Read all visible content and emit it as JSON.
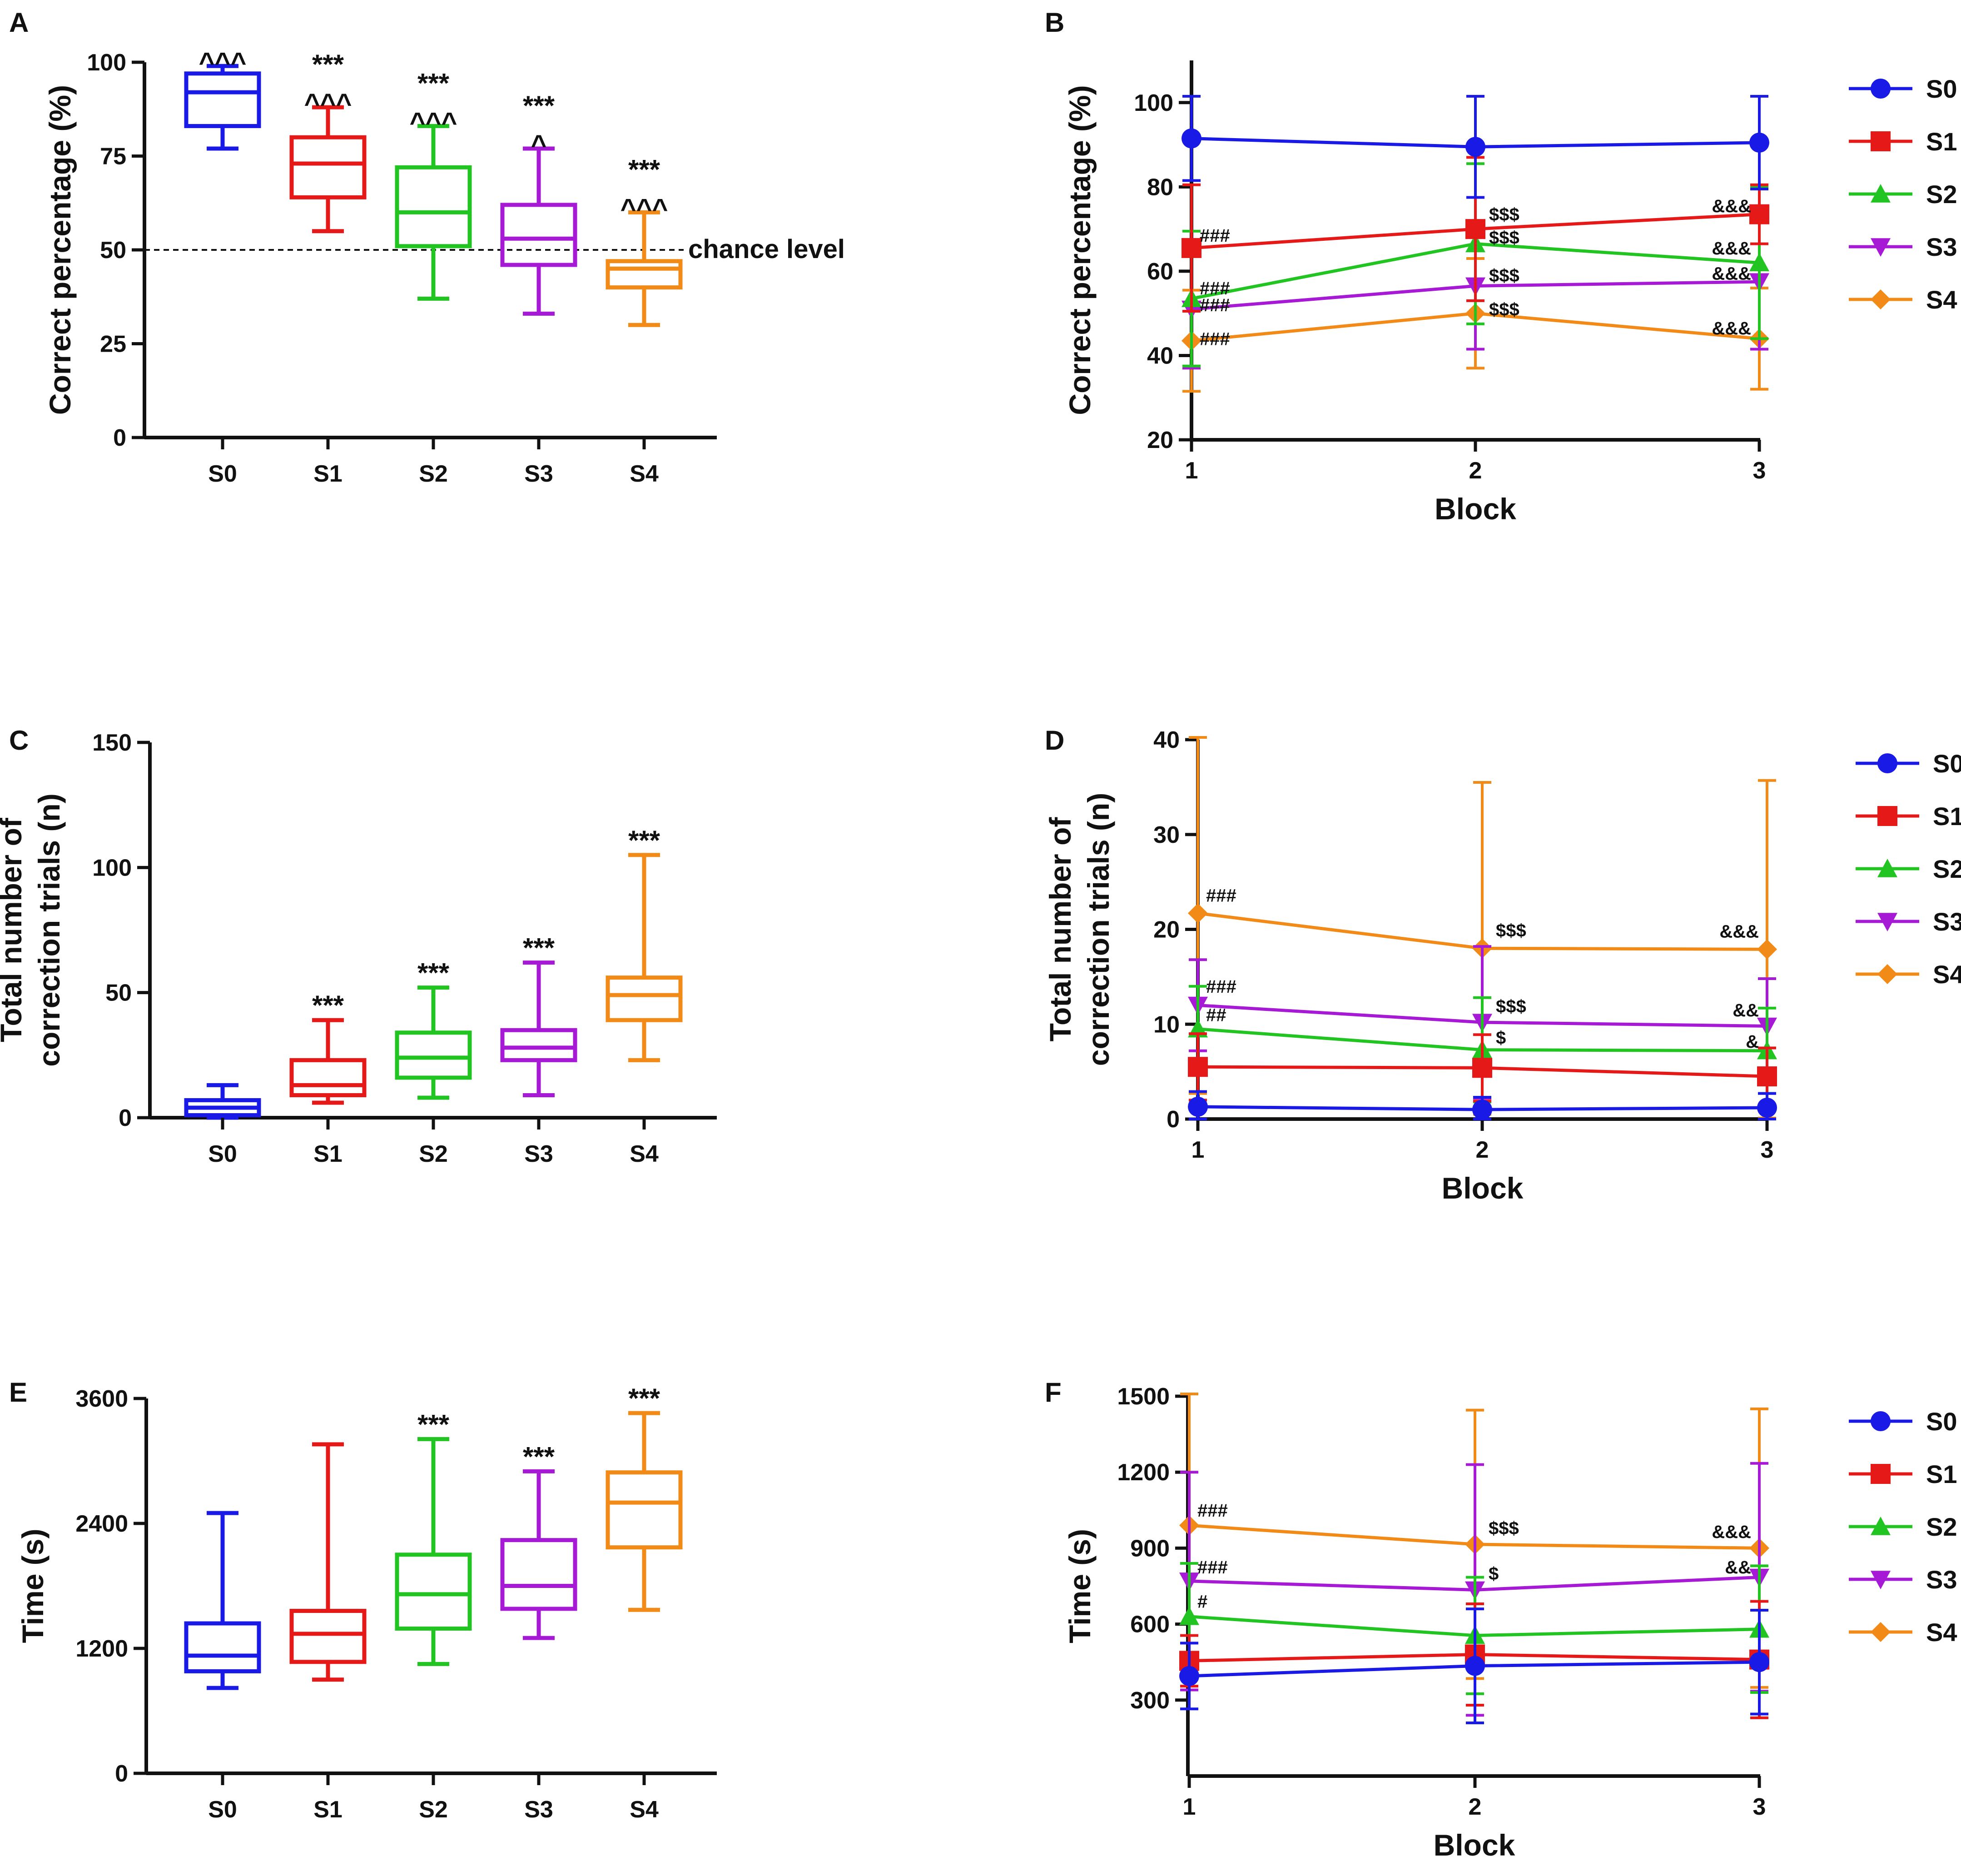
{
  "colors": {
    "S0": "#1a1ae6",
    "S1": "#e61919",
    "S2": "#22c422",
    "S3": "#a61ad6",
    "S4": "#f28a18"
  },
  "chart_data": [
    {
      "panel": "A",
      "type": "box",
      "title": "",
      "xlabel": "",
      "ylabel": "Correct percentage (%)",
      "ylim": [
        0,
        100
      ],
      "yticks": [
        "0",
        "25",
        "50",
        "75",
        "100"
      ],
      "reference_line": {
        "y": 50,
        "label": "chance level"
      },
      "categories": [
        "S0",
        "S1",
        "S2",
        "S3",
        "S4"
      ],
      "boxes": [
        {
          "min": 77,
          "q1": 83,
          "median": 92,
          "q3": 97,
          "max": 99,
          "sig": [
            "^^^"
          ]
        },
        {
          "min": 55,
          "q1": 64,
          "median": 73,
          "q3": 80,
          "max": 88,
          "sig": [
            "***",
            "^^^"
          ]
        },
        {
          "min": 37,
          "q1": 51,
          "median": 60,
          "q3": 72,
          "max": 83,
          "sig": [
            "***",
            "^^^"
          ]
        },
        {
          "min": 33,
          "q1": 46,
          "median": 53,
          "q3": 62,
          "max": 77,
          "sig": [
            "***",
            "^"
          ]
        },
        {
          "min": 30,
          "q1": 40,
          "median": 45,
          "q3": 47,
          "max": 60,
          "sig": [
            "***",
            "^^^"
          ]
        }
      ]
    },
    {
      "panel": "B",
      "type": "line",
      "xlabel": "Block",
      "ylabel": "Correct percentage (%)",
      "x": [
        1,
        2,
        3
      ],
      "xticks": [
        "1",
        "2",
        "3"
      ],
      "ylim": [
        20,
        110
      ],
      "yticks": [
        "20",
        "40",
        "60",
        "80",
        "100"
      ],
      "series": [
        {
          "name": "S0",
          "values": [
            91.5,
            89.5,
            90.5
          ],
          "err": [
            10,
            12,
            11
          ]
        },
        {
          "name": "S1",
          "values": [
            65.5,
            70,
            73.5
          ],
          "err": [
            15,
            17,
            7
          ]
        },
        {
          "name": "S2",
          "values": [
            53.5,
            66.5,
            62
          ],
          "err": [
            16,
            19,
            18
          ]
        },
        {
          "name": "S3",
          "values": [
            51,
            56.5,
            57.5
          ],
          "err": [
            14,
            15,
            16
          ]
        },
        {
          "name": "S4",
          "values": [
            43.5,
            50,
            44
          ],
          "err": [
            12,
            13,
            12
          ]
        }
      ],
      "annotations": [
        {
          "text": "###",
          "x": 1,
          "y": 68.5
        },
        {
          "text": "###",
          "x": 1,
          "y": 56
        },
        {
          "text": "###",
          "x": 1,
          "y": 52
        },
        {
          "text": "###",
          "x": 1,
          "y": 44
        },
        {
          "text": "$$$",
          "x": 2,
          "y": 73.5
        },
        {
          "text": "$$$",
          "x": 2,
          "y": 68
        },
        {
          "text": "$$$",
          "x": 2,
          "y": 59
        },
        {
          "text": "$$$",
          "x": 2,
          "y": 51
        },
        {
          "text": "&&&",
          "x": 3,
          "y": 75.5
        },
        {
          "text": "&&&",
          "x": 3,
          "y": 65.5
        },
        {
          "text": "&&&",
          "x": 3,
          "y": 59.5
        },
        {
          "text": "&&&",
          "x": 3,
          "y": 46.5
        }
      ]
    },
    {
      "panel": "C",
      "type": "box",
      "xlabel": "",
      "ylabel_lines": [
        "Total number of",
        "correction trials (n)"
      ],
      "ylim": [
        0,
        150
      ],
      "yticks": [
        "0",
        "50",
        "100",
        "150"
      ],
      "categories": [
        "S0",
        "S1",
        "S2",
        "S3",
        "S4"
      ],
      "boxes": [
        {
          "min": 0,
          "q1": 1,
          "median": 4,
          "q3": 7,
          "max": 13,
          "sig": []
        },
        {
          "min": 6,
          "q1": 9,
          "median": 13,
          "q3": 23,
          "max": 39,
          "sig": [
            "***"
          ]
        },
        {
          "min": 8,
          "q1": 16,
          "median": 24,
          "q3": 34,
          "max": 52,
          "sig": [
            "***"
          ]
        },
        {
          "min": 9,
          "q1": 23,
          "median": 28,
          "q3": 35,
          "max": 62,
          "sig": [
            "***"
          ]
        },
        {
          "min": 23,
          "q1": 39,
          "median": 49,
          "q3": 56,
          "max": 105,
          "sig": [
            "***"
          ]
        }
      ]
    },
    {
      "panel": "D",
      "type": "line",
      "xlabel": "Block",
      "ylabel_lines": [
        "Total number of",
        "correction trials (n)"
      ],
      "x": [
        1,
        2,
        3
      ],
      "xticks": [
        "1",
        "2",
        "3"
      ],
      "ylim": [
        0,
        40
      ],
      "yticks": [
        "0",
        "10",
        "20",
        "30",
        "40"
      ],
      "series": [
        {
          "name": "S0",
          "values": [
            1.3,
            1.0,
            1.2
          ],
          "err": [
            1.6,
            1.3,
            1.5
          ]
        },
        {
          "name": "S1",
          "values": [
            5.5,
            5.4,
            4.5
          ],
          "err": [
            3.5,
            3.5,
            3.0
          ]
        },
        {
          "name": "S2",
          "values": [
            9.5,
            7.3,
            7.2
          ],
          "err": [
            4.5,
            5.5,
            4.5
          ]
        },
        {
          "name": "S3",
          "values": [
            12,
            10.2,
            9.8
          ],
          "err": [
            4.8,
            8,
            5
          ]
        },
        {
          "name": "S4",
          "values": [
            21.7,
            18,
            17.9
          ],
          "err": [
            19,
            17.5,
            17.8
          ]
        }
      ],
      "annotations": [
        {
          "text": "###",
          "x": 1,
          "y": 23.6
        },
        {
          "text": "###",
          "x": 1,
          "y": 14
        },
        {
          "text": "##",
          "x": 1,
          "y": 11
        },
        {
          "text": "$$$",
          "x": 2,
          "y": 19.9
        },
        {
          "text": "$$$",
          "x": 2,
          "y": 11.9
        },
        {
          "text": "$",
          "x": 2,
          "y": 8.6
        },
        {
          "text": "&&&",
          "x": 3,
          "y": 19.8
        },
        {
          "text": "&&",
          "x": 3,
          "y": 11.5
        },
        {
          "text": "&",
          "x": 3,
          "y": 8.2
        }
      ]
    },
    {
      "panel": "E",
      "type": "box",
      "xlabel": "",
      "ylabel": "Time (s)",
      "ylim": [
        0,
        3600
      ],
      "yticks": [
        "0",
        "1200",
        "2400",
        "3600"
      ],
      "categories": [
        "S0",
        "S1",
        "S2",
        "S3",
        "S4"
      ],
      "boxes": [
        {
          "min": 820,
          "q1": 980,
          "median": 1130,
          "q3": 1440,
          "max": 2500,
          "sig": []
        },
        {
          "min": 900,
          "q1": 1070,
          "median": 1340,
          "q3": 1560,
          "max": 3160,
          "sig": []
        },
        {
          "min": 1050,
          "q1": 1390,
          "median": 1720,
          "q3": 2100,
          "max": 3210,
          "sig": [
            "***"
          ]
        },
        {
          "min": 1300,
          "q1": 1580,
          "median": 1800,
          "q3": 2240,
          "max": 2900,
          "sig": [
            "***"
          ]
        },
        {
          "min": 1570,
          "q1": 2170,
          "median": 2600,
          "q3": 2890,
          "max": 3460,
          "sig": [
            "***"
          ]
        }
      ]
    },
    {
      "panel": "F",
      "type": "line",
      "xlabel": "Block",
      "ylabel": "Time (s)",
      "x": [
        1,
        2,
        3
      ],
      "xticks": [
        "1",
        "2",
        "3"
      ],
      "ylim": [
        0,
        1500
      ],
      "yticks": [
        "300",
        "600",
        "900",
        "1200",
        "1500"
      ],
      "series": [
        {
          "name": "S0",
          "values": [
            395,
            435,
            450
          ],
          "err": [
            130,
            225,
            205
          ]
        },
        {
          "name": "S1",
          "values": [
            455,
            480,
            460
          ],
          "err": [
            100,
            200,
            230
          ]
        },
        {
          "name": "S2",
          "values": [
            630,
            555,
            580
          ],
          "err": [
            210,
            230,
            250
          ]
        },
        {
          "name": "S3",
          "values": [
            770,
            735,
            785
          ],
          "err": [
            430,
            495,
            450
          ]
        },
        {
          "name": "S4",
          "values": [
            990,
            915,
            900
          ],
          "err": [
            520,
            530,
            550
          ]
        }
      ],
      "annotations": [
        {
          "text": "###",
          "x": 1,
          "y": 1050
        },
        {
          "text": "###",
          "x": 1,
          "y": 825
        },
        {
          "text": "#",
          "x": 1,
          "y": 690
        },
        {
          "text": "$$$",
          "x": 2,
          "y": 980
        },
        {
          "text": "$",
          "x": 2,
          "y": 800
        },
        {
          "text": "&&&",
          "x": 3,
          "y": 965
        },
        {
          "text": "&&",
          "x": 3,
          "y": 825
        }
      ]
    }
  ]
}
